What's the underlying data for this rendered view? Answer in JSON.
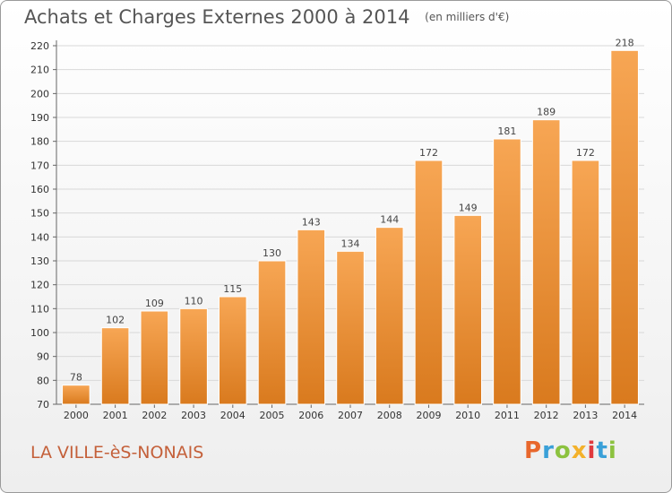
{
  "header": {
    "title": "Achats et Charges Externes 2000 à 2014",
    "unit": "(en milliers d'€)"
  },
  "footer": {
    "commune": "LA VILLE-èS-NONAIS",
    "logo": "Proxiti",
    "logo_colors": [
      "#e8672c",
      "#3aa0d8",
      "#8cc23f",
      "#f3b12b",
      "#e03a3e",
      "#3aa0d8",
      "#8cc23f"
    ]
  },
  "colors": {
    "bar_light": "#f7a654",
    "bar_dark": "#d97a1e",
    "grid": "#d8d8d8"
  },
  "chart_data": {
    "type": "bar",
    "title": "Achats et Charges Externes 2000 à 2014",
    "subtitle": "(en milliers d'€)",
    "categories": [
      "2000",
      "2001",
      "2002",
      "2003",
      "2004",
      "2005",
      "2006",
      "2007",
      "2008",
      "2009",
      "2010",
      "2011",
      "2012",
      "2013",
      "2014"
    ],
    "values": [
      78,
      102,
      109,
      110,
      115,
      130,
      143,
      134,
      144,
      172,
      149,
      181,
      189,
      172,
      218
    ],
    "ylim": [
      70,
      220
    ],
    "yticks": [
      70,
      80,
      90,
      100,
      110,
      120,
      130,
      140,
      150,
      160,
      170,
      180,
      190,
      200,
      210,
      220
    ],
    "grid": true,
    "data_labels": true
  }
}
